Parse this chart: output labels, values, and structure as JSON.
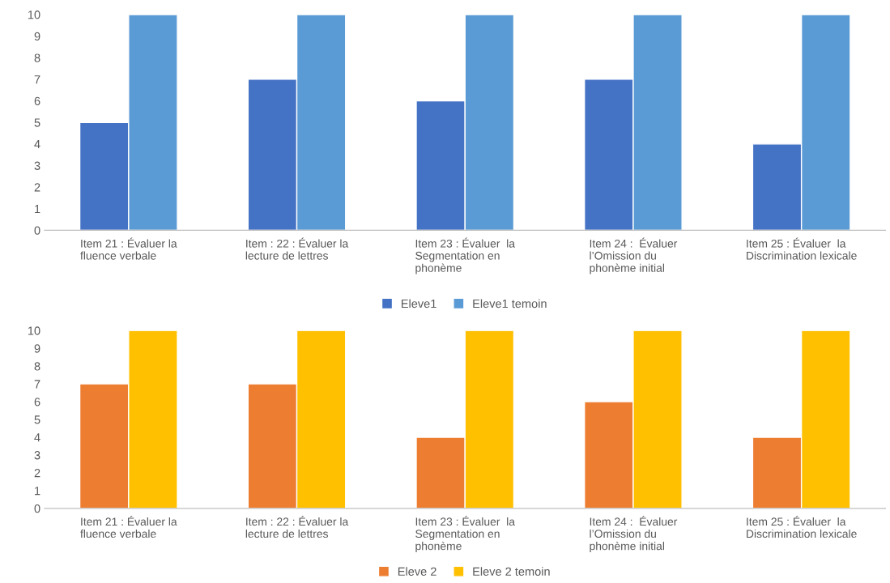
{
  "chart_data": [
    {
      "type": "bar",
      "categories": [
        "Item 21 : Évaluer la\nfluence verbale",
        "Item : 22 : Évaluer la\nlecture de lettres",
        "Item 23 : Évaluer  la\nSegmentation en\nphonème",
        "Item 24 :  Évaluer\nl’Omission du\nphonème initial",
        "Item 25 : Évaluer  la\nDiscrimination lexicale"
      ],
      "series": [
        {
          "name": "Eleve1",
          "color": "#4472c4",
          "values": [
            5,
            7,
            6,
            7,
            4
          ]
        },
        {
          "name": "Eleve1 temoin",
          "color": "#5b9bd5",
          "values": [
            10,
            10,
            10,
            10,
            10
          ]
        }
      ],
      "ylim": [
        0,
        10
      ],
      "yticks": [
        0,
        1,
        2,
        3,
        4,
        5,
        6,
        7,
        8,
        9,
        10
      ],
      "grid": false,
      "legend": "bottom"
    },
    {
      "type": "bar",
      "categories": [
        "Item 21 : Évaluer la\nfluence verbale",
        "Item : 22 : Évaluer la\nlecture de lettres",
        "Item 23 : Évaluer  la\nSegmentation en\nphonème",
        "Item 24 :  Évaluer\nl’Omission du\nphonème initial",
        "Item 25 : Évaluer  la\nDiscrimination lexicale"
      ],
      "series": [
        {
          "name": "Eleve 2",
          "color": "#ed7d31",
          "values": [
            7,
            7,
            4,
            6,
            4
          ]
        },
        {
          "name": "Eleve 2 temoin",
          "color": "#ffc000",
          "values": [
            10,
            10,
            10,
            10,
            10
          ]
        }
      ],
      "ylim": [
        0,
        10
      ],
      "yticks": [
        0,
        1,
        2,
        3,
        4,
        5,
        6,
        7,
        8,
        9,
        10
      ],
      "grid": false,
      "legend": "bottom"
    }
  ]
}
